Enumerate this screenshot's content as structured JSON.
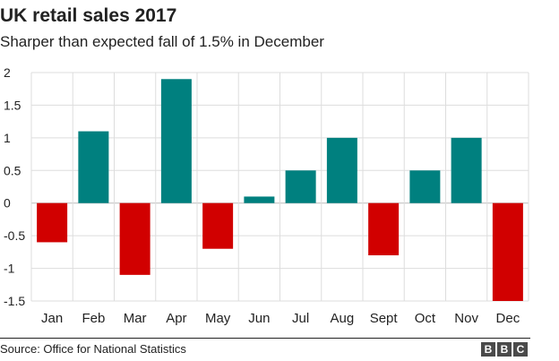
{
  "header": {
    "title": "UK retail sales 2017",
    "subtitle": "Sharper than expected fall of 1.5% in December"
  },
  "footer": {
    "source": "Source: Office for National Statistics",
    "logo_letters": [
      "B",
      "B",
      "C"
    ]
  },
  "colors": {
    "positive": "#00807f",
    "negative": "#d10000",
    "grid": "#dddddd",
    "zero_line": "#bbbbbb",
    "text": "#222222",
    "logo_block": "#4a4a4a"
  },
  "chart_data": {
    "type": "bar",
    "categories": [
      "Jan",
      "Feb",
      "Mar",
      "Apr",
      "May",
      "Jun",
      "Jul",
      "Aug",
      "Sept",
      "Oct",
      "Nov",
      "Dec"
    ],
    "values": [
      -0.6,
      1.1,
      -1.1,
      1.9,
      -0.7,
      0.1,
      0.5,
      1.0,
      -0.8,
      0.5,
      1.0,
      -1.5
    ],
    "title": "UK retail sales 2017",
    "subtitle": "Sharper than expected fall of 1.5% in December",
    "xlabel": "",
    "ylabel": "",
    "ylim": [
      -1.5,
      2
    ],
    "yticks": [
      2,
      1.5,
      1,
      0.5,
      0,
      -0.5,
      -1,
      -1.5
    ],
    "ytick_labels": [
      "2",
      "1.5",
      "1",
      "0.5",
      "0",
      "-0.5",
      "-1",
      "-1.5"
    ],
    "grid": true,
    "legend": "none"
  }
}
